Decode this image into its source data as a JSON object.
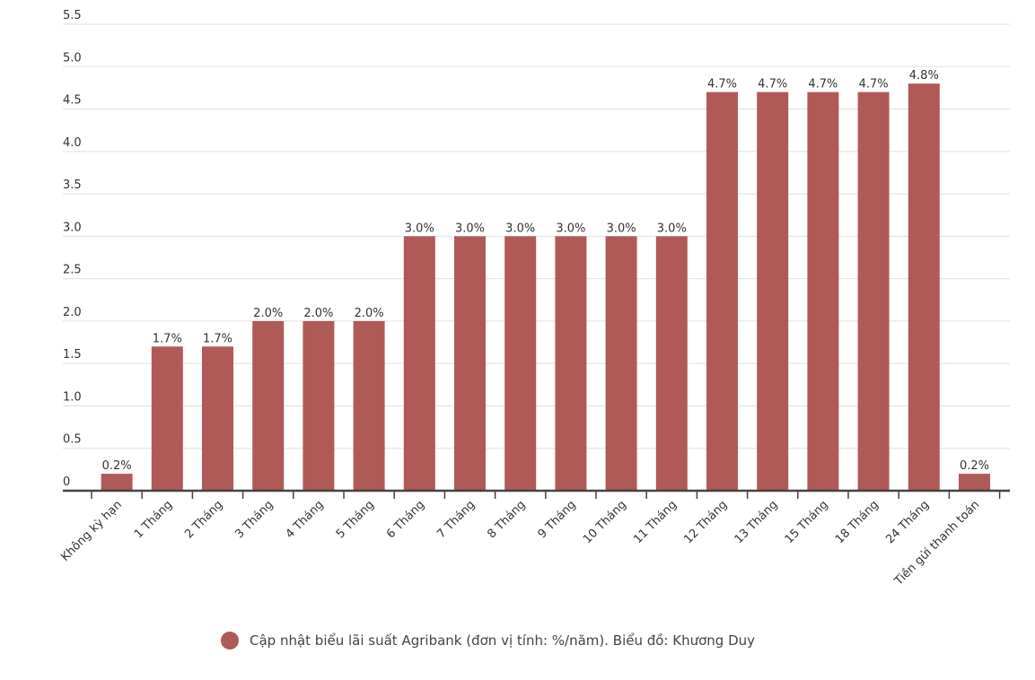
{
  "chart_data": {
    "type": "bar",
    "title": "",
    "xlabel": "",
    "ylabel": "",
    "ylim": [
      0,
      5.5
    ],
    "yticks": [
      "0",
      "0.5",
      "1.0",
      "1.5",
      "2.0",
      "2.5",
      "3.0",
      "3.5",
      "4.0",
      "4.5",
      "5.0",
      "5.5"
    ],
    "grid": true,
    "legend_placement": "bottom",
    "categories": [
      "Không kỳ hạn",
      "1 Tháng",
      "2 Tháng",
      "3 Tháng",
      "4 Tháng",
      "5 Tháng",
      "6 Tháng",
      "7 Tháng",
      "8 Tháng",
      "9 Tháng",
      "10 Tháng",
      "11 Tháng",
      "12 Tháng",
      "13 Tháng",
      "15 Tháng",
      "18 Tháng",
      "24 Tháng",
      "Tiền gửi thanh toán"
    ],
    "series": [
      {
        "name": "Cập nhật biểu lãi suất Agribank (đơn vị tính: %/năm). Biểu đồ: Khương Duy",
        "values": [
          0.2,
          1.7,
          1.7,
          2.0,
          2.0,
          2.0,
          3.0,
          3.0,
          3.0,
          3.0,
          3.0,
          3.0,
          4.7,
          4.7,
          4.7,
          4.7,
          4.8,
          0.2
        ],
        "labels": [
          "0.2%",
          "1.7%",
          "1.7%",
          "2.0%",
          "2.0%",
          "2.0%",
          "3.0%",
          "3.0%",
          "3.0%",
          "3.0%",
          "3.0%",
          "3.0%",
          "4.7%",
          "4.7%",
          "4.7%",
          "4.7%",
          "4.8%",
          "0.2%"
        ],
        "color": "#b05a58"
      }
    ]
  }
}
